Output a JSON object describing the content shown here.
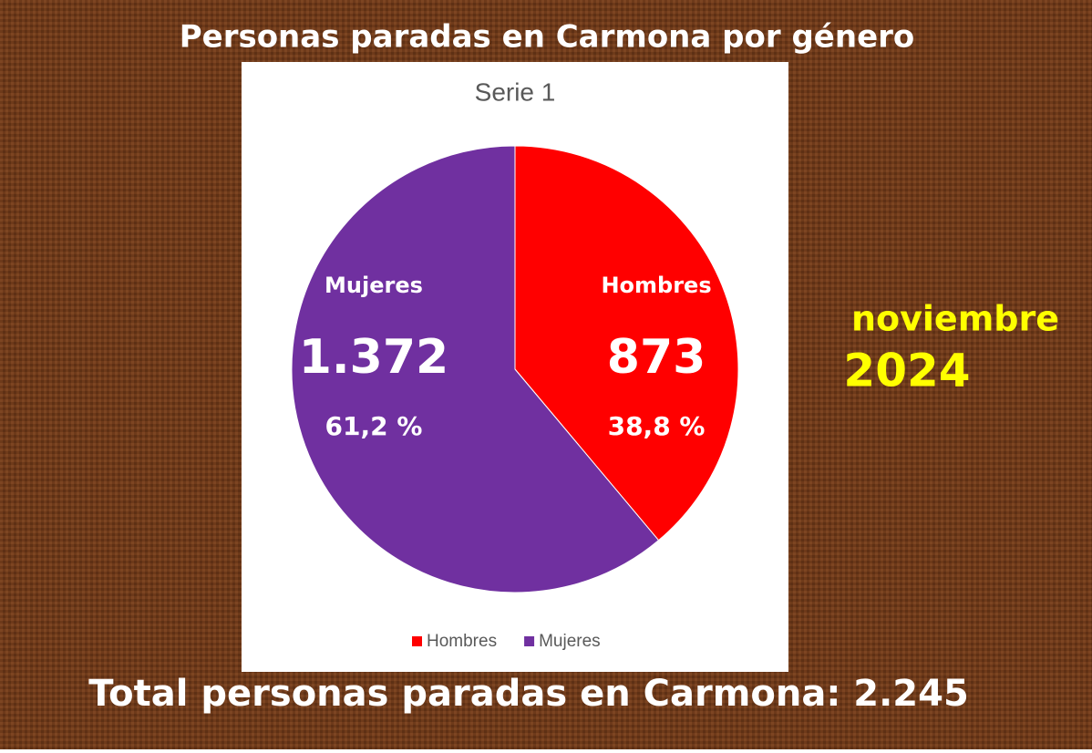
{
  "header": {
    "title": "Personas paradas en Carmona por género"
  },
  "date": {
    "month": "noviembre",
    "year": "2024"
  },
  "footer": {
    "total": "Total personas paradas en Carmona: 2.245"
  },
  "chart_data": {
    "type": "pie",
    "title": "Serie 1",
    "categories": [
      "Hombres",
      "Mujeres"
    ],
    "values": [
      873,
      1372
    ],
    "value_labels": [
      "873",
      "1.372"
    ],
    "percent_labels": [
      "38,8 %",
      "61,2 %"
    ],
    "colors": [
      "#ff0000",
      "#7030a0"
    ],
    "legend": "bottom"
  }
}
